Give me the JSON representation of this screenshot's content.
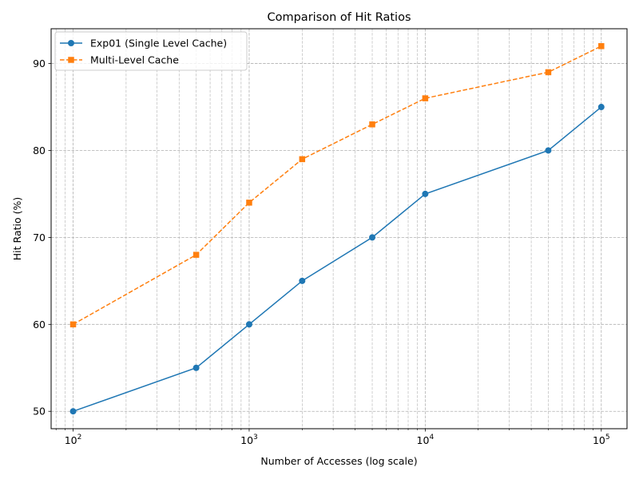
{
  "chart_data": {
    "type": "line",
    "title": "Comparison of Hit Ratios",
    "xlabel": "Number of Accesses (log scale)",
    "ylabel": "Hit Ratio (%)",
    "xscale": "log",
    "xlim": [
      75,
      140000
    ],
    "ylim": [
      48,
      94
    ],
    "grid": "both (major and minor, dashed)",
    "legend_position": "upper-left",
    "x": [
      100,
      500,
      1000,
      2000,
      5000,
      10000,
      50000,
      100000
    ],
    "x_ticks": [
      {
        "value": 100,
        "base": "10",
        "exp": "2"
      },
      {
        "value": 1000,
        "base": "10",
        "exp": "3"
      },
      {
        "value": 10000,
        "base": "10",
        "exp": "4"
      },
      {
        "value": 100000,
        "base": "10",
        "exp": "5"
      }
    ],
    "y_ticks": [
      {
        "value": 50,
        "label": "50"
      },
      {
        "value": 60,
        "label": "60"
      },
      {
        "value": 70,
        "label": "70"
      },
      {
        "value": 80,
        "label": "80"
      },
      {
        "value": 90,
        "label": "90"
      }
    ],
    "series": [
      {
        "name": "Exp01 (Single Level Cache)",
        "values": [
          50,
          55,
          60,
          65,
          70,
          75,
          80,
          85
        ],
        "color": "#1f77b4",
        "marker": "circle",
        "linestyle": "solid"
      },
      {
        "name": "Multi-Level Cache",
        "values": [
          60,
          68,
          74,
          79,
          83,
          86,
          89,
          92
        ],
        "color": "#ff7f0e",
        "marker": "square",
        "linestyle": "dashed"
      }
    ]
  }
}
